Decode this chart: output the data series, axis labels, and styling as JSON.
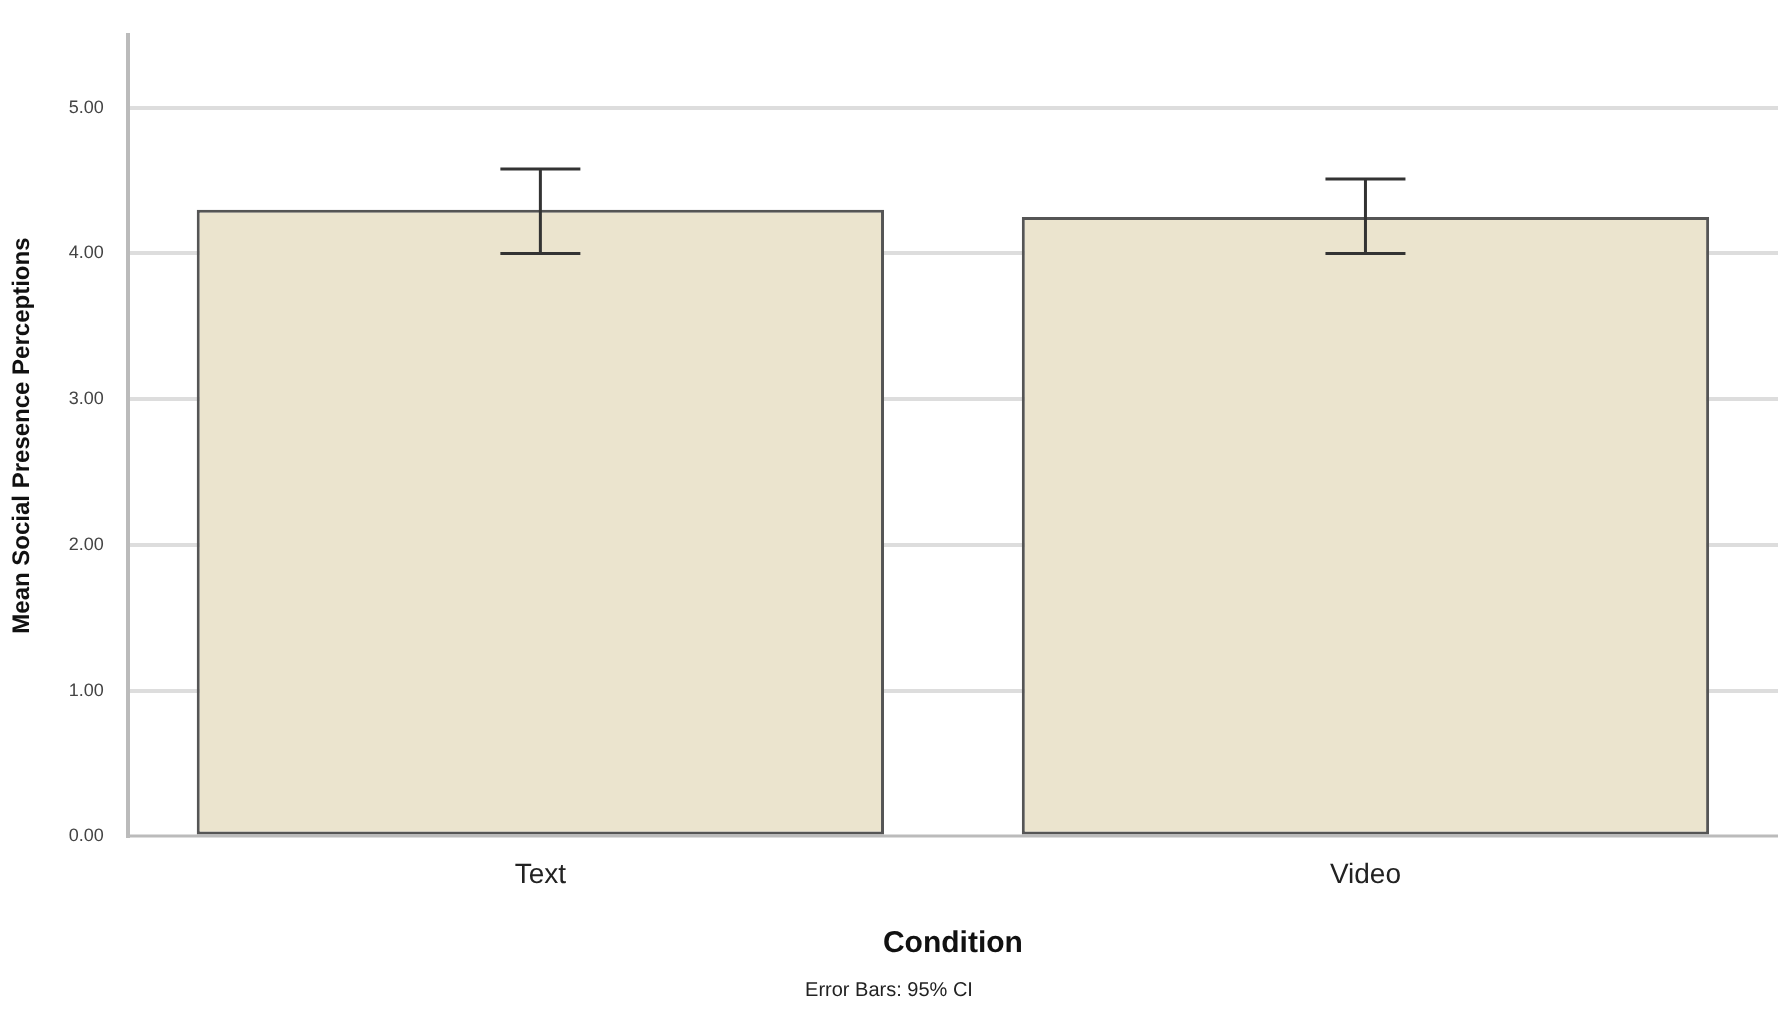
{
  "chart_data": {
    "type": "bar",
    "xlabel": "Condition",
    "ylabel": "Mean Social Presence Perceptions",
    "categories": [
      "Text",
      "Video"
    ],
    "values": [
      4.3,
      4.25
    ],
    "errors": [
      [
        4.0,
        4.58
      ],
      [
        4.0,
        4.51
      ]
    ],
    "color": "#ebe4ce",
    "ylim": [
      0,
      5.5
    ],
    "yticks": [
      {
        "value": 0,
        "label": "0.00"
      },
      {
        "value": 1,
        "label": "1.00"
      },
      {
        "value": 2,
        "label": "2.00"
      },
      {
        "value": 3,
        "label": "3.00"
      },
      {
        "value": 4,
        "label": "4.00"
      },
      {
        "value": 5,
        "label": "5.00"
      }
    ],
    "grid": "y",
    "legend": false,
    "annotations": [
      "Error Bars: 95% CI"
    ]
  }
}
